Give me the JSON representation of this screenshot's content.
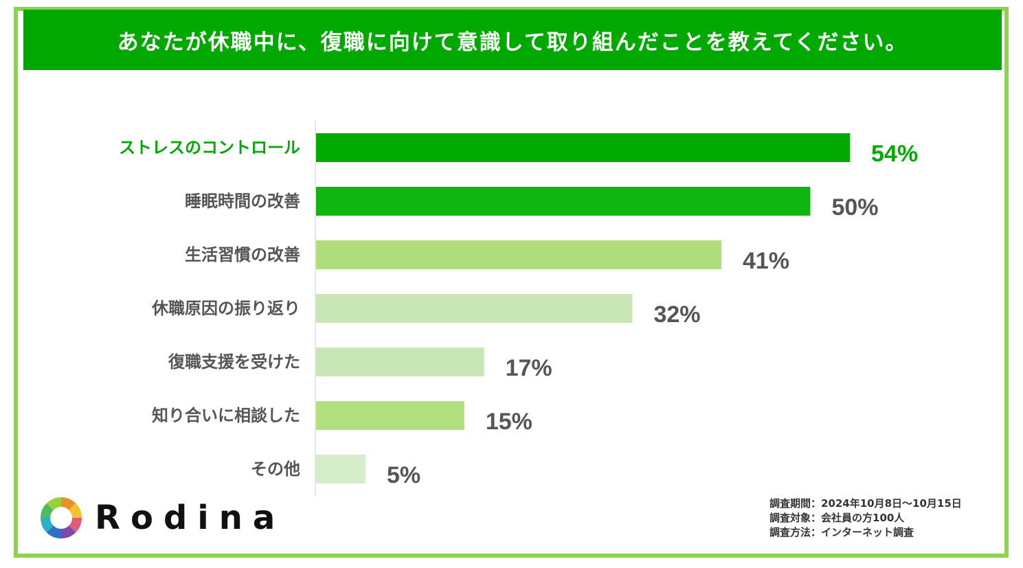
{
  "header": {
    "title": "あなたが休職中に、復職に向けて意識して取り組んだことを教えてください。"
  },
  "chart_data": {
    "type": "bar",
    "orientation": "horizontal",
    "title": "あなたが休職中に、復職に向けて意識して取り組んだことを教えてください。",
    "categories": [
      "ストレスのコントロール",
      "睡眠時間の改善",
      "生活習慣の改善",
      "休職原因の振り返り",
      "復職支援を受けた",
      "知り合いに相談した",
      "その他"
    ],
    "values": [
      54,
      50,
      41,
      32,
      17,
      15,
      5
    ],
    "value_labels": [
      "54%",
      "50%",
      "41%",
      "32%",
      "17%",
      "15%",
      "5%"
    ],
    "bar_colors": [
      "#00aa00",
      "#11b511",
      "#aedd7a",
      "#c8e6b6",
      "#c8e6b6",
      "#b2e07f",
      "#d4ecca"
    ],
    "label_colors": [
      "#00aa00",
      "#555555",
      "#555555",
      "#555555",
      "#555555",
      "#555555",
      "#555555"
    ],
    "value_colors": [
      "#00aa00",
      "#555555",
      "#555555",
      "#555555",
      "#555555",
      "#555555",
      "#555555"
    ],
    "xlim": [
      0,
      54
    ],
    "grid": false,
    "legend": "none"
  },
  "logo": {
    "text": "Rodina"
  },
  "survey": {
    "period": "調査期間：2024年10月8日～10月15日",
    "target": "調査対象：会社員の方100人",
    "method": "調査方法：インターネット調査"
  },
  "colors": {
    "header_bg": "#00a800",
    "frame": "#8fd24f"
  }
}
